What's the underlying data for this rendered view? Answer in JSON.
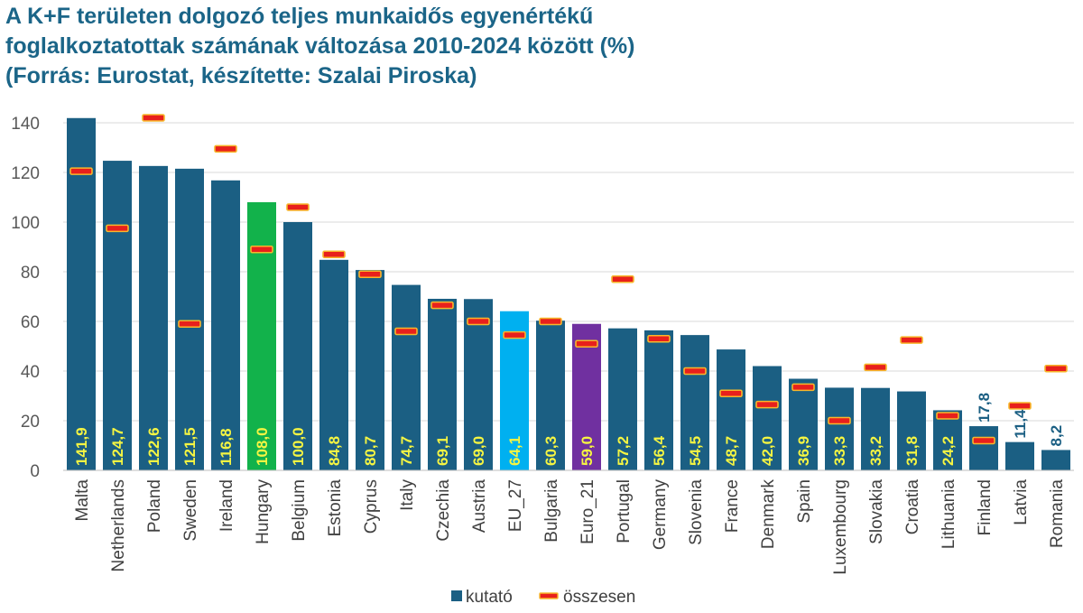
{
  "title_lines": [
    "A K+F területen dolgozó teljes munkaidős egyenértékű",
    "foglalkoztatottak számának változása 2010-2024 között (%)",
    "(Forrás: Eurostat, készítette: Szalai Piroska)"
  ],
  "chart_data": {
    "type": "bar",
    "categories": [
      "Malta",
      "Netherlands",
      "Poland",
      "Sweden",
      "Ireland",
      "Hungary",
      "Belgium",
      "Estonia",
      "Cyprus",
      "Italy",
      "Czechia",
      "Austria",
      "EU_27",
      "Bulgaria",
      "Euro_21",
      "Portugal",
      "Germany",
      "Slovenia",
      "France",
      "Denmark",
      "Spain",
      "Luxembourg",
      "Slovakia",
      "Croatia",
      "Lithuania",
      "Finland",
      "Latvia",
      "Romania"
    ],
    "series": [
      {
        "name": "kutató",
        "type": "bar",
        "color": "#1b5f83",
        "values": [
          141.9,
          124.7,
          122.6,
          121.5,
          116.8,
          108.0,
          100.0,
          84.8,
          80.7,
          74.7,
          69.1,
          69.0,
          64.1,
          60.3,
          59.0,
          57.2,
          56.4,
          54.5,
          48.7,
          42.0,
          36.9,
          33.3,
          33.2,
          31.8,
          24.2,
          17.8,
          11.4,
          8.2
        ],
        "labels": [
          "141,9",
          "124,7",
          "122,6",
          "121,5",
          "116,8",
          "108,0",
          "100,0",
          "84,8",
          "80,7",
          "74,7",
          "69,1",
          "69,0",
          "64,1",
          "60,3",
          "59,0",
          "57,2",
          "56,4",
          "54,5",
          "48,7",
          "42,0",
          "36,9",
          "33,3",
          "33,2",
          "31,8",
          "24,2",
          "17,8",
          "11,4",
          "8,2"
        ]
      },
      {
        "name": "összesen",
        "type": "marker",
        "color": "#e8201c",
        "values": [
          120.5,
          97.5,
          142,
          59,
          129.5,
          89,
          106,
          87,
          79,
          56,
          66.5,
          60,
          54.5,
          60,
          51,
          77,
          53,
          40,
          31,
          26.5,
          33.5,
          20,
          41.5,
          52.5,
          22,
          12,
          26,
          41
        ]
      }
    ],
    "highlights": {
      "Hungary": "#12b24b",
      "EU_27": "#00b0f0",
      "Euro_21": "#7030a0"
    },
    "bar_label_color": "#f5f542",
    "outside_label_color": "#1b5f83",
    "marker_fill": "#e8201c",
    "marker_border": "#f7b72b",
    "ylim": [
      0,
      140
    ],
    "yticks": [
      0,
      20,
      40,
      60,
      80,
      100,
      120,
      140
    ],
    "grid": true,
    "legend_position": "bottom",
    "xlabel": "",
    "ylabel": ""
  }
}
